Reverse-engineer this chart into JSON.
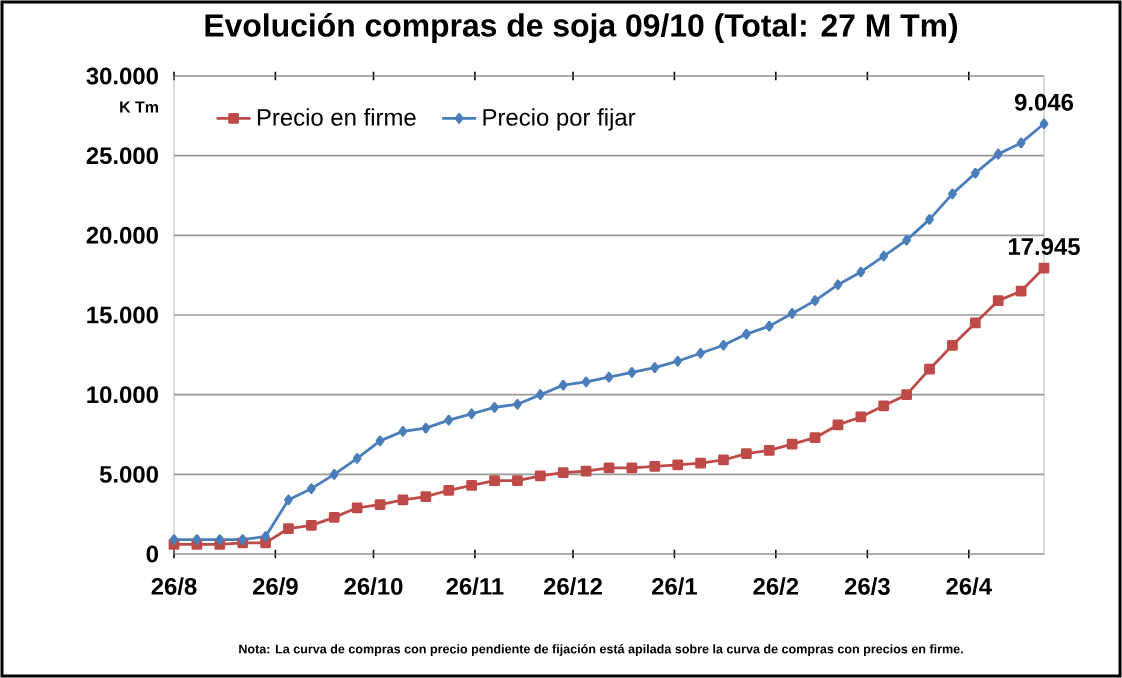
{
  "chart_data": {
    "type": "line",
    "title": "Evolución compras de soja 09/10 (Total: 27 M Tm)",
    "ylabel": "K Tm",
    "x": [
      "2009-08-26",
      "2009-09-02",
      "2009-09-09",
      "2009-09-16",
      "2009-09-23",
      "2009-09-30",
      "2009-10-07",
      "2009-10-14",
      "2009-10-21",
      "2009-10-28",
      "2009-11-04",
      "2009-11-11",
      "2009-11-18",
      "2009-11-25",
      "2009-12-02",
      "2009-12-09",
      "2009-12-16",
      "2009-12-23",
      "2009-12-30",
      "2010-01-06",
      "2010-01-13",
      "2010-01-20",
      "2010-01-27",
      "2010-02-03",
      "2010-02-10",
      "2010-02-17",
      "2010-02-24",
      "2010-03-03",
      "2010-03-10",
      "2010-03-17",
      "2010-03-24",
      "2010-03-31",
      "2010-04-07",
      "2010-04-14",
      "2010-04-21",
      "2010-04-28",
      "2010-05-05",
      "2010-05-12",
      "2010-05-19"
    ],
    "series": [
      {
        "name": "Precio en firme",
        "color": "#be4b48",
        "marker": "square",
        "values": [
          600,
          600,
          600,
          700,
          700,
          1600,
          1800,
          2300,
          2900,
          3100,
          3400,
          3600,
          4000,
          4300,
          4600,
          4600,
          4900,
          5100,
          5200,
          5400,
          5400,
          5500,
          5600,
          5700,
          5900,
          6300,
          6500,
          6900,
          7300,
          8100,
          8600,
          9300,
          10000,
          11600,
          13100,
          14500,
          15900,
          16500,
          17945
        ]
      },
      {
        "name": "Precio por fijar",
        "color": "#4a7ebb",
        "marker": "diamond",
        "values": [
          900,
          900,
          900,
          900,
          1100,
          3400,
          4100,
          5000,
          6000,
          7100,
          7700,
          7900,
          8400,
          8800,
          9200,
          9400,
          10000,
          10600,
          10800,
          11100,
          11400,
          11700,
          12100,
          12600,
          13100,
          13800,
          14300,
          15100,
          15900,
          16900,
          17700,
          18700,
          19700,
          21000,
          22600,
          23900,
          25100,
          25800,
          27000
        ]
      }
    ],
    "xlim": [
      "2009-08-26",
      "2010-05-19"
    ],
    "xticks": [
      {
        "value": "2009-08-26",
        "label": "26/8"
      },
      {
        "value": "2009-09-26",
        "label": "26/9"
      },
      {
        "value": "2009-10-26",
        "label": "26/10"
      },
      {
        "value": "2009-11-26",
        "label": "26/11"
      },
      {
        "value": "2009-12-26",
        "label": "26/12"
      },
      {
        "value": "2010-01-26",
        "label": "26/1"
      },
      {
        "value": "2010-02-26",
        "label": "26/2"
      },
      {
        "value": "2010-03-26",
        "label": "26/3"
      },
      {
        "value": "2010-04-26",
        "label": "26/4"
      }
    ],
    "ylim": [
      0,
      30000
    ],
    "yticks": [
      0,
      {
        "value": 5000,
        "label": "5.000"
      },
      {
        "value": 10000,
        "label": "10.000"
      },
      {
        "value": 15000,
        "label": "15.000"
      },
      {
        "value": 20000,
        "label": "20.000"
      },
      {
        "value": 25000,
        "label": "25.000"
      },
      {
        "value": 30000,
        "label": "30.000"
      }
    ],
    "grid": "y",
    "legend": "top left",
    "line_style": "solid",
    "annotations": [
      {
        "text": "9.046",
        "x": "2010-05-19",
        "y": 27000
      },
      {
        "text": "17.945",
        "x": "2010-05-19",
        "y": 17945
      },
      "Nota: La curva de compras con precio pendiente de fijación está apilada sobre la curva de compras con precios en firme."
    ]
  }
}
